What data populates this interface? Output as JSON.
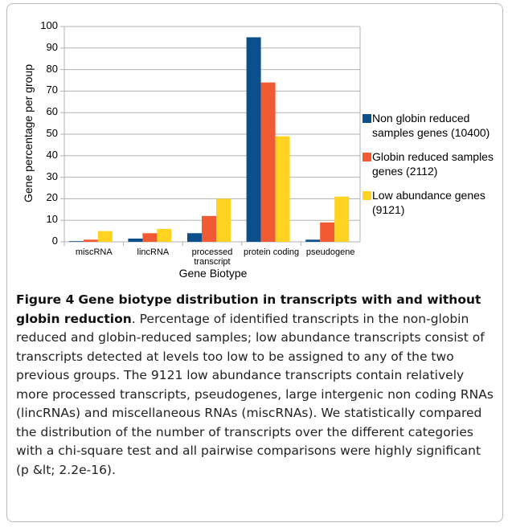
{
  "chart_data": {
    "type": "bar",
    "categories": [
      "miscRNA",
      "lincRNA",
      "processed transcript",
      "protein coding",
      "pseudogene"
    ],
    "series": [
      {
        "name": "Non globin reduced samples genes (10400)",
        "color": "#0b4f8b",
        "values": [
          0.3,
          1.5,
          4,
          95,
          1
        ]
      },
      {
        "name": "Globin reduced samples genes (2112)",
        "color": "#f15a32",
        "values": [
          1,
          4,
          12,
          74,
          9
        ]
      },
      {
        "name": "Low abundance genes (9121)",
        "color": "#ffd320",
        "values": [
          5,
          6,
          20,
          49,
          21
        ]
      }
    ],
    "xlabel": "Gene Biotype",
    "ylabel": "Gene percentage per group",
    "ylim": [
      0,
      100
    ],
    "yticks": [
      0,
      10,
      20,
      30,
      40,
      50,
      60,
      70,
      80,
      90,
      100
    ],
    "grid": true,
    "legend": "right"
  },
  "caption": {
    "label": "Figure 4",
    "title": "Gene biotype distribution in transcripts with and without globin reduction",
    "text": ". Percentage of identified transcripts in the non-globin reduced and globin-reduced samples; low abundance transcripts consist of transcripts detected at levels too low to be assigned to any of the two previous groups. The 9121 low abundance transcripts contain relatively more processed transcripts, pseudogenes, large intergenic non coding RNAs (lincRNAs) and miscellaneous RNAs (miscRNAs). We statistically compared the distribution of the number of transcripts over the different categories with a chi-square test and all pairwise comparisons were highly significant (p &lt; 2.2e-16)."
  }
}
